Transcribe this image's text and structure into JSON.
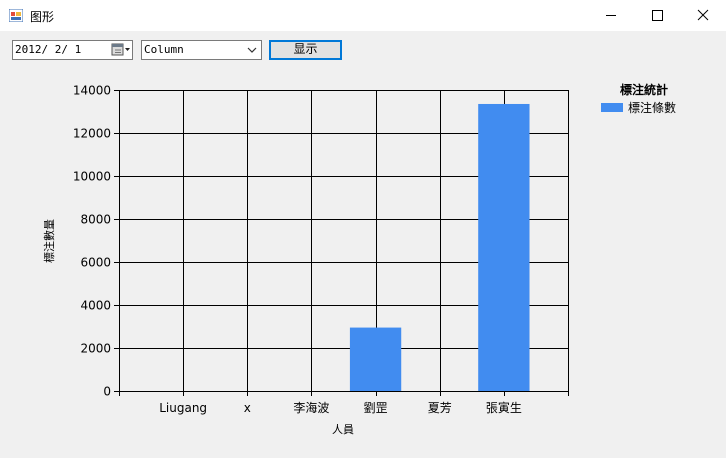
{
  "window": {
    "title": "图形"
  },
  "toolbar": {
    "date_value": "2012/ 2/ 1",
    "chart_type_value": "Column",
    "show_button_label": "显示"
  },
  "chart_data": {
    "type": "bar",
    "categories": [
      "Liugang",
      "x",
      "李海波",
      "劉罡",
      "夏芳",
      "張寅生"
    ],
    "series": [
      {
        "name": "標注條數",
        "values": [
          0,
          0,
          0,
          2950,
          0,
          13350
        ],
        "color": "#418cf0"
      }
    ],
    "title": "",
    "legend_title": "標注統計",
    "xlabel": "人員",
    "ylabel": "標注數量",
    "ylim": [
      0,
      14000
    ],
    "yticks": [
      "0",
      "2000",
      "4000",
      "6000",
      "8000",
      "10000",
      "12000",
      "14000"
    ],
    "grid": true,
    "legend_position": "top-right"
  }
}
